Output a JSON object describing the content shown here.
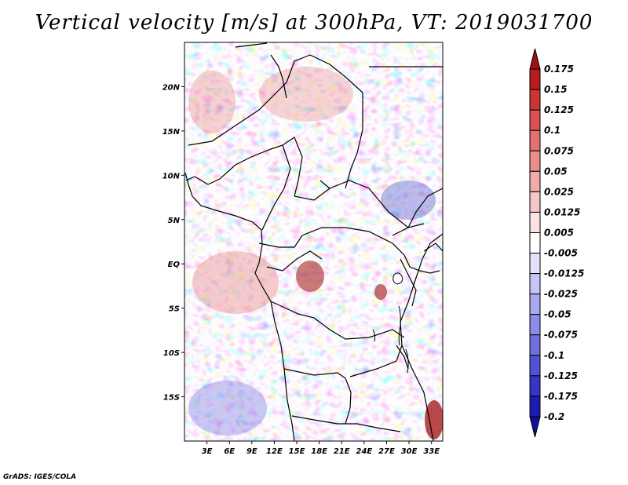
{
  "title": "Vertical velocity [m/s] at 300hPa, VT: 2019031700",
  "credit": "GrADS: IGES/COLA",
  "map": {
    "lon_range": [
      0,
      34.5
    ],
    "lat_range": [
      -20,
      25
    ],
    "x_ticks": [
      {
        "lon": 3,
        "label": "3E"
      },
      {
        "lon": 6,
        "label": "6E"
      },
      {
        "lon": 9,
        "label": "9E"
      },
      {
        "lon": 12,
        "label": "12E"
      },
      {
        "lon": 15,
        "label": "15E"
      },
      {
        "lon": 18,
        "label": "18E"
      },
      {
        "lon": 21,
        "label": "21E"
      },
      {
        "lon": 24,
        "label": "24E"
      },
      {
        "lon": 27,
        "label": "27E"
      },
      {
        "lon": 30,
        "label": "30E"
      },
      {
        "lon": 33,
        "label": "33E"
      }
    ],
    "y_ticks": [
      {
        "lat": 20,
        "label": "20N"
      },
      {
        "lat": 15,
        "label": "15N"
      },
      {
        "lat": 10,
        "label": "10N"
      },
      {
        "lat": 5,
        "label": "5N"
      },
      {
        "lat": 0,
        "label": "EQ"
      },
      {
        "lat": -5,
        "label": "5S"
      },
      {
        "lat": -10,
        "label": "10S"
      },
      {
        "lat": -15,
        "label": "15S"
      }
    ]
  },
  "colorbar": {
    "levels": [
      "0.175",
      "0.15",
      "0.125",
      "0.1",
      "0.075",
      "0.05",
      "0.025",
      "0.0125",
      "0.005",
      "-0.005",
      "-0.0125",
      "-0.025",
      "-0.05",
      "-0.075",
      "-0.1",
      "-0.125",
      "-0.175",
      "-0.2"
    ],
    "colors": [
      "#a01010",
      "#b81c1c",
      "#cd3535",
      "#dc5252",
      "#e57070",
      "#ec8d8d",
      "#f2aaaa",
      "#f7c7c7",
      "#fbe3e3",
      "#ffffff",
      "#e2e2fb",
      "#c6c6f6",
      "#a9a9f0",
      "#8c8ce8",
      "#6f6fdf",
      "#5252d4",
      "#3535c6",
      "#1c1cb0",
      "#101098"
    ]
  },
  "colors": {
    "positive": "#e05050",
    "negative": "#5555dd",
    "coast": "#000000"
  }
}
